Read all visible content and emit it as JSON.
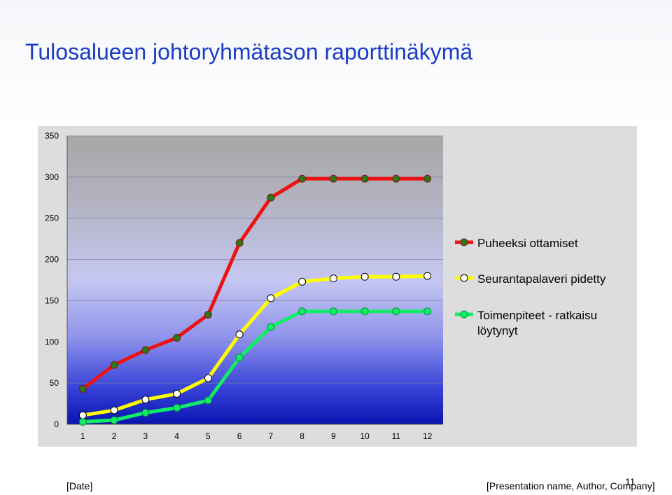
{
  "slide": {
    "title": "Tulosalueen  johtoryhmätason raporttinäkymä",
    "footer_date": "[Date]",
    "footer_presentation": "[Presentation name, Author, Company]",
    "page_number": "11"
  },
  "chart_data": {
    "type": "line",
    "categories": [
      "1",
      "2",
      "3",
      "4",
      "5",
      "6",
      "7",
      "8",
      "9",
      "10",
      "11",
      "12"
    ],
    "ylim": [
      0,
      350
    ],
    "yticks": [
      0,
      50,
      100,
      150,
      200,
      250,
      300,
      350
    ],
    "grid": true,
    "legend_position": "right",
    "series": [
      {
        "name": "Puheeksi ottamiset",
        "color": "#ee1111",
        "marker_fill": "#2a7a1a",
        "values": [
          43,
          72,
          90,
          105,
          133,
          220,
          275,
          298,
          298,
          298,
          298,
          298
        ]
      },
      {
        "name": "Seurantapalaveri pidetty",
        "color": "#ffff00",
        "marker_fill": "#ffffff",
        "values": [
          11,
          17,
          30,
          37,
          56,
          109,
          153,
          173,
          177,
          179,
          179,
          180
        ]
      },
      {
        "name": "Toimenpiteet - ratkaisu löytynyt",
        "color": "#11ee66",
        "marker_fill": "#11ee66",
        "values": [
          3,
          5,
          14,
          20,
          29,
          81,
          118,
          137,
          137,
          137,
          137,
          137
        ]
      }
    ]
  }
}
